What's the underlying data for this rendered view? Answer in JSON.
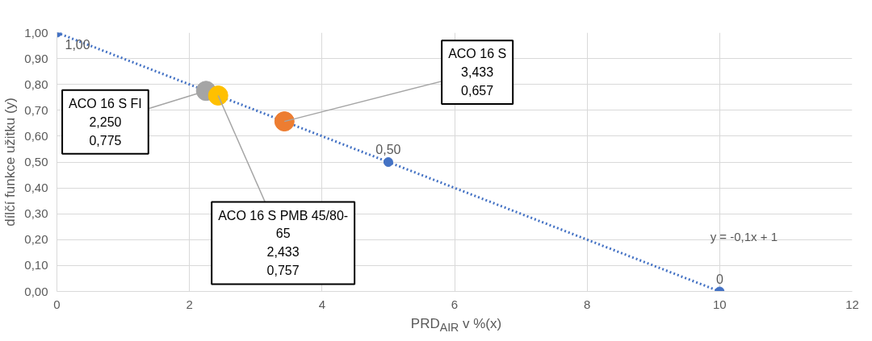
{
  "chart_data": {
    "type": "scatter",
    "xlabel": "PRD$_{AIR}$ v %(x)",
    "ylabel": "dílčí funkce užitku (y)",
    "xlim": [
      0,
      12
    ],
    "xticks": [
      0,
      2,
      4,
      6,
      8,
      10,
      12
    ],
    "ylim": [
      0,
      1
    ],
    "yticks": [
      {
        "value": 0,
        "label": "0,00"
      },
      {
        "value": 0.1,
        "label": "0,10"
      },
      {
        "value": 0.2,
        "label": "0,20"
      },
      {
        "value": 0.3,
        "label": "0,30"
      },
      {
        "value": 0.4,
        "label": "0,40"
      },
      {
        "value": 0.5,
        "label": "0,50"
      },
      {
        "value": 0.6,
        "label": "0,60"
      },
      {
        "value": 0.7,
        "label": "0,70"
      },
      {
        "value": 0.8,
        "label": "0,80"
      },
      {
        "value": 0.9,
        "label": "0,90"
      },
      {
        "value": 1,
        "label": "1,00"
      }
    ],
    "grid": true,
    "marker": "circle",
    "series": [
      {
        "type": "line",
        "name": "y = -0,1x + 1",
        "color": "#4472c4",
        "line_style": "dotted",
        "marker": "none",
        "x": [
          0,
          10
        ],
        "values": [
          1,
          0
        ]
      },
      {
        "color": "#4472c4",
        "x": [
          0,
          5,
          10
        ],
        "values": [
          1,
          0.5,
          0
        ],
        "value_labels": [
          "1,00",
          "0,50",
          "0"
        ]
      },
      {
        "color": "#a5a5a5",
        "x": [
          2.25
        ],
        "values": [
          0.775
        ]
      },
      {
        "color": "#ffc000",
        "x": [
          2.433
        ],
        "values": [
          0.757
        ]
      },
      {
        "color": "#ed7d31",
        "x": [
          3.433
        ],
        "values": [
          0.657
        ]
      }
    ],
    "annotations": [
      {
        "text": "ACO 16 S FI\n2,250\n0,775",
        "x": 2.25,
        "y": 0.775
      },
      {
        "text": "ACO 16 S\n3,433\n0,657",
        "x": 3.433,
        "y": 0.657
      },
      {
        "text": "ACO 16 S PMB 45/80-\n65\n2,433\n0,757",
        "x": 2.433,
        "y": 0.757
      }
    ]
  }
}
